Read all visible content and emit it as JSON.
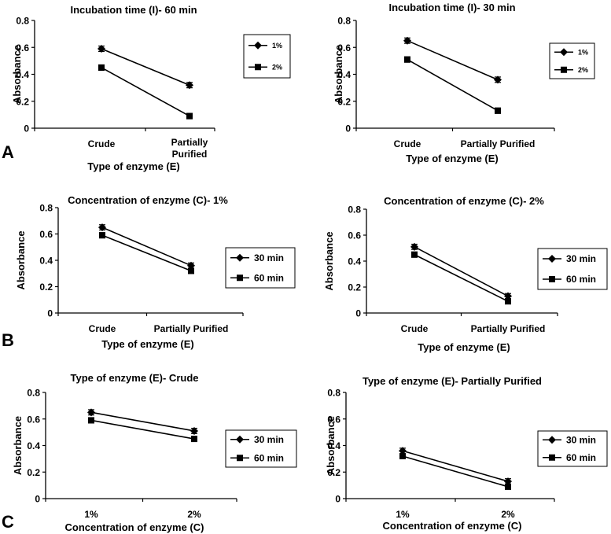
{
  "panel_labels": [
    "A",
    "B",
    "C"
  ],
  "chart_data": [
    {
      "type": "line",
      "title": "Incubation time (I)- 60 min",
      "xlabel": "Type of enzyme (E)",
      "ylabel": "Absorbance",
      "categories": [
        "Crude",
        "Partially Purified"
      ],
      "ylim": [
        0,
        0.8
      ],
      "yticks": [
        "0",
        "0.2",
        "0.4",
        "0.6",
        "0.8"
      ],
      "legend": "right",
      "series": [
        {
          "name": "1%",
          "marker": "diamond",
          "values": [
            0.59,
            0.32
          ],
          "errors": [
            0.02,
            0.02
          ]
        },
        {
          "name": "2%",
          "marker": "square",
          "values": [
            0.45,
            0.09
          ],
          "errors": [
            0.02,
            0.02
          ]
        }
      ]
    },
    {
      "type": "line",
      "title": "Incubation time (I)- 30 min",
      "xlabel": "Type of enzyme (E)",
      "ylabel": "Absorbance",
      "categories": [
        "Crude",
        "Partially Purified"
      ],
      "ylim": [
        0,
        0.8
      ],
      "yticks": [
        "0",
        "0.2",
        "0.4",
        "0.6",
        "0.8"
      ],
      "legend": "right",
      "series": [
        {
          "name": "1%",
          "marker": "diamond",
          "values": [
            0.65,
            0.36
          ],
          "errors": [
            0.02,
            0.02
          ]
        },
        {
          "name": "2%",
          "marker": "square",
          "values": [
            0.51,
            0.13
          ],
          "errors": [
            0.02,
            0.02
          ]
        }
      ]
    },
    {
      "type": "line",
      "title": "Concentration of enzyme (C)- 1%",
      "xlabel": "Type of enzyme (E)",
      "ylabel": "Absorbance",
      "categories": [
        "Crude",
        "Partially Purified"
      ],
      "ylim": [
        0,
        0.8
      ],
      "yticks": [
        "0",
        "0.2",
        "0.4",
        "0.6",
        "0.8"
      ],
      "legend": "right",
      "series": [
        {
          "name": "30 min",
          "marker": "diamond",
          "values": [
            0.65,
            0.36
          ],
          "errors": [
            0.02,
            0.02
          ]
        },
        {
          "name": "60 min",
          "marker": "square",
          "values": [
            0.59,
            0.32
          ],
          "errors": [
            0.02,
            0.02
          ]
        }
      ]
    },
    {
      "type": "line",
      "title": "Concentration of enzyme (C)- 2%",
      "xlabel": "Type of enzyme (E)",
      "ylabel": "Absorbance",
      "categories": [
        "Crude",
        "Partially Purified"
      ],
      "ylim": [
        0,
        0.8
      ],
      "yticks": [
        "0",
        "0.2",
        "0.4",
        "0.6",
        "0.8"
      ],
      "legend": "right",
      "series": [
        {
          "name": "30 min",
          "marker": "diamond",
          "values": [
            0.51,
            0.13
          ],
          "errors": [
            0.02,
            0.02
          ]
        },
        {
          "name": "60 min",
          "marker": "square",
          "values": [
            0.45,
            0.09
          ],
          "errors": [
            0.02,
            0.02
          ]
        }
      ]
    },
    {
      "type": "line",
      "title": "Type of enzyme (E)- Crude",
      "xlabel": "Concentration of enzyme (C)",
      "ylabel": "Absorbance",
      "categories": [
        "1%",
        "2%"
      ],
      "ylim": [
        0,
        0.8
      ],
      "yticks": [
        "0",
        "0.2",
        "0.4",
        "0.6",
        "0.8"
      ],
      "legend": "right",
      "series": [
        {
          "name": "30 min",
          "marker": "diamond",
          "values": [
            0.65,
            0.51
          ],
          "errors": [
            0.02,
            0.02
          ]
        },
        {
          "name": "60 min",
          "marker": "square",
          "values": [
            0.59,
            0.45
          ],
          "errors": [
            0.02,
            0.02
          ]
        }
      ]
    },
    {
      "type": "line",
      "title": "Type of enzyme (E)- Partially Purified",
      "xlabel": "Concentration of enzyme (C)",
      "ylabel": "Absorbance",
      "categories": [
        "1%",
        "2%"
      ],
      "ylim": [
        0,
        0.8
      ],
      "yticks": [
        "0",
        "0.2",
        "0.4",
        "0.6",
        "0.8"
      ],
      "legend": "right",
      "series": [
        {
          "name": "30 min",
          "marker": "diamond",
          "values": [
            0.36,
            0.13
          ],
          "errors": [
            0.02,
            0.02
          ]
        },
        {
          "name": "60 min",
          "marker": "square",
          "values": [
            0.32,
            0.09
          ],
          "errors": [
            0.02,
            0.02
          ]
        }
      ]
    }
  ]
}
